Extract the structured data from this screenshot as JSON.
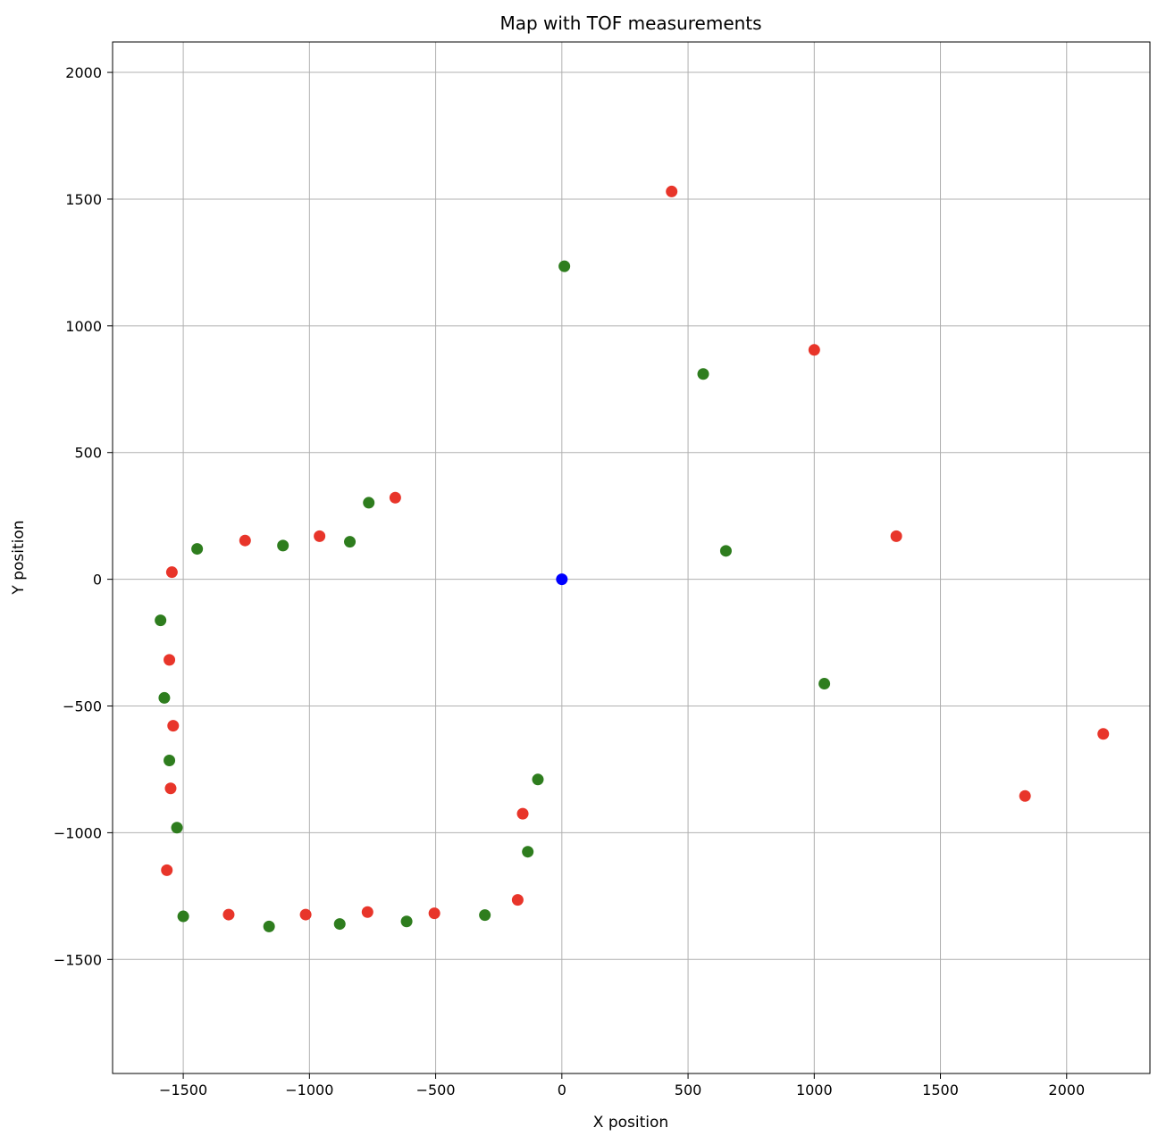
{
  "chart_data": {
    "type": "scatter",
    "title": "Map with TOF measurements",
    "xlabel": "X position",
    "ylabel": "Y position",
    "xlim": [
      -1780,
      2330
    ],
    "ylim": [
      -1950,
      2120
    ],
    "grid": true,
    "xticks": [
      -1500,
      -1000,
      -500,
      0,
      500,
      1000,
      1500,
      2000
    ],
    "yticks": [
      -1500,
      -1000,
      -500,
      0,
      500,
      1000,
      1500,
      2000
    ],
    "xtick_labels": [
      "−1500",
      "−1000",
      "−500",
      "0",
      "500",
      "1000",
      "1500",
      "2000"
    ],
    "ytick_labels": [
      "−1500",
      "−1000",
      "−500",
      "0",
      "500",
      "1000",
      "1500",
      "2000"
    ],
    "colors": {
      "red": "#e8352a",
      "green": "#2e7d1e",
      "blue": "#0000ff"
    },
    "series": [
      {
        "color": "#e8352a",
        "points": [
          [
            435,
            1530
          ],
          [
            1000,
            905
          ],
          [
            1325,
            170
          ],
          [
            2145,
            -610
          ],
          [
            1835,
            -855
          ],
          [
            -660,
            322
          ],
          [
            -960,
            170
          ],
          [
            -1255,
            153
          ],
          [
            -1545,
            28
          ],
          [
            -1555,
            -318
          ],
          [
            -1540,
            -578
          ],
          [
            -1550,
            -825
          ],
          [
            -1565,
            -1148
          ],
          [
            -1320,
            -1323
          ],
          [
            -1015,
            -1323
          ],
          [
            -770,
            -1313
          ],
          [
            -505,
            -1318
          ],
          [
            -175,
            -1265
          ],
          [
            -155,
            -925
          ]
        ]
      },
      {
        "color": "#2e7d1e",
        "points": [
          [
            10,
            1235
          ],
          [
            560,
            810
          ],
          [
            650,
            112
          ],
          [
            1040,
            -412
          ],
          [
            -765,
            302
          ],
          [
            -840,
            148
          ],
          [
            -1105,
            133
          ],
          [
            -1445,
            120
          ],
          [
            -1590,
            -162
          ],
          [
            -1575,
            -468
          ],
          [
            -1555,
            -715
          ],
          [
            -1525,
            -980
          ],
          [
            -1500,
            -1330
          ],
          [
            -1160,
            -1370
          ],
          [
            -880,
            -1360
          ],
          [
            -615,
            -1350
          ],
          [
            -305,
            -1325
          ],
          [
            -135,
            -1075
          ],
          [
            -95,
            -790
          ]
        ]
      },
      {
        "color": "#0000ff",
        "points": [
          [
            0,
            0
          ]
        ]
      }
    ]
  }
}
